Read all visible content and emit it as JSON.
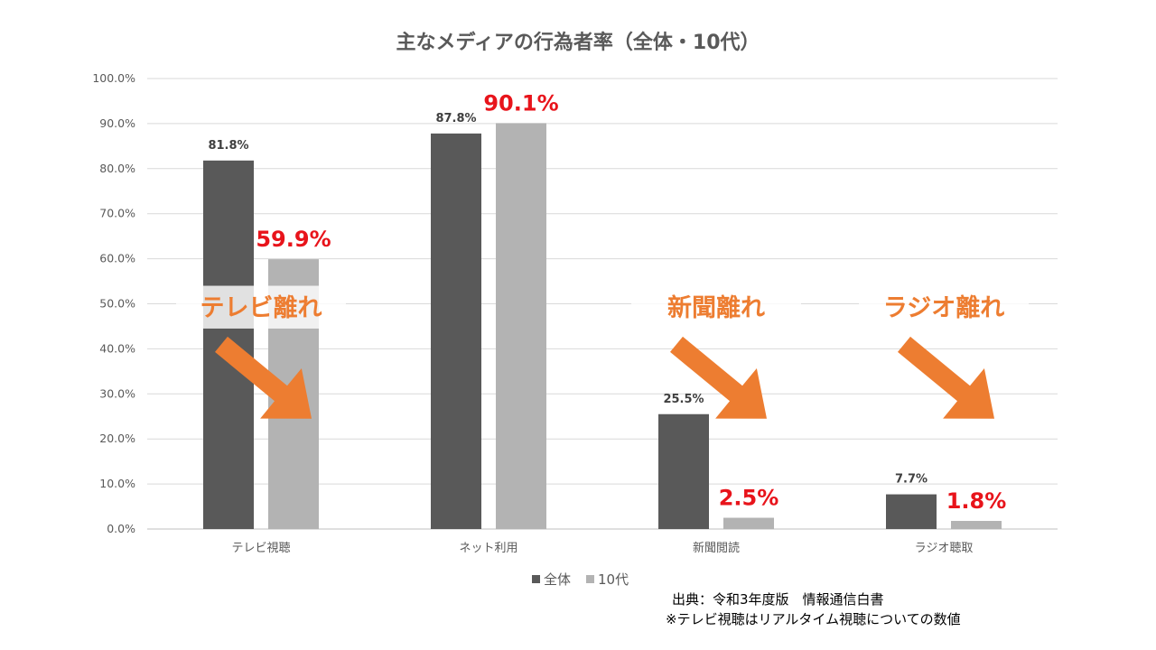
{
  "chart_data": {
    "type": "bar",
    "title": "主なメディアの行為者率（全体・10代）",
    "categories": [
      "テレビ視聴",
      "ネット利用",
      "新聞閲読",
      "ラジオ聴取"
    ],
    "series": [
      {
        "name": "全体",
        "values": [
          81.8,
          87.8,
          25.5,
          7.7
        ],
        "labels": [
          "81.8%",
          "87.8%",
          "25.5%",
          "7.7%"
        ],
        "color": "#595959"
      },
      {
        "name": "10代",
        "values": [
          59.9,
          90.1,
          2.5,
          1.8
        ],
        "labels": [
          "59.9%",
          "90.1%",
          "2.5%",
          "1.8%"
        ],
        "color": "#b3b3b3"
      }
    ],
    "ylim": [
      0,
      100
    ],
    "yticks": [
      "0.0%",
      "10.0%",
      "20.0%",
      "30.0%",
      "40.0%",
      "50.0%",
      "60.0%",
      "70.0%",
      "80.0%",
      "90.0%",
      "100.0%"
    ],
    "grid": true,
    "legend": "bottom-center",
    "highlight_label_color": "#e8141b"
  },
  "annotations": {
    "callouts": [
      {
        "category": "テレビ視聴",
        "text": "テレビ離れ"
      },
      {
        "category": "新聞閲読",
        "text": "新聞離れ"
      },
      {
        "category": "ラジオ聴取",
        "text": "ラジオ離れ"
      }
    ],
    "callout_color": "#ed7d31"
  },
  "source": {
    "line1": "出典：令和3年度版　情報通信白書",
    "line2": "※テレビ視聴はリアルタイム視聴についての数値"
  }
}
